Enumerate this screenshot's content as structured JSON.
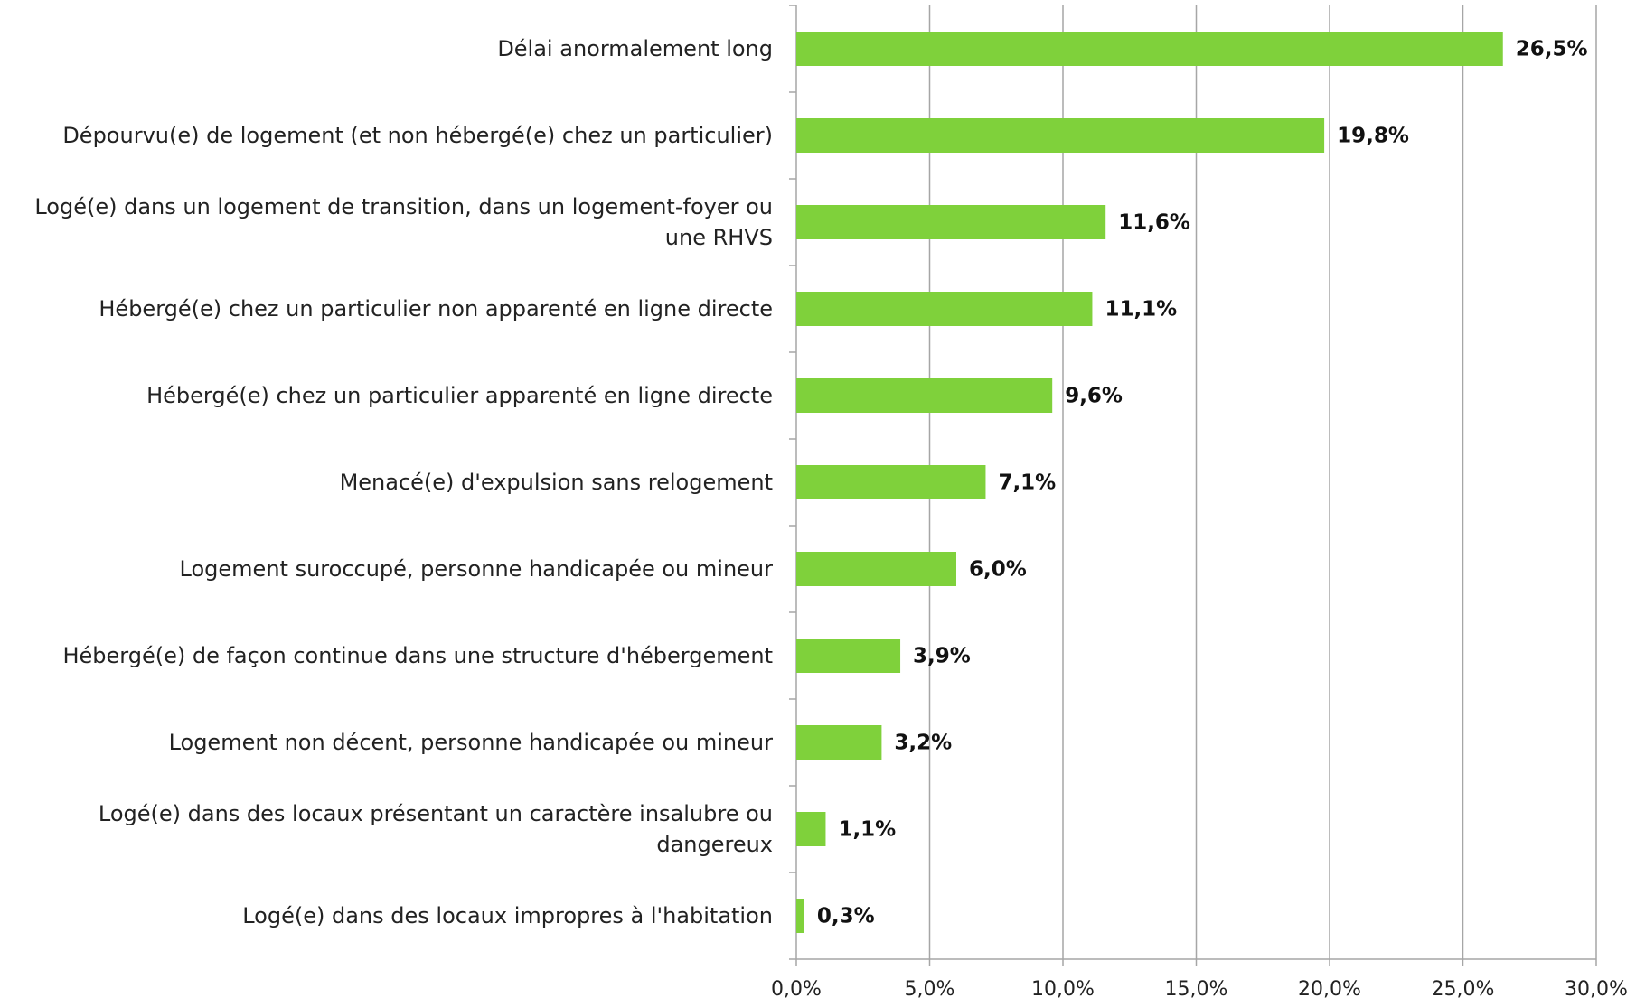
{
  "chart_data": {
    "type": "bar",
    "orientation": "horizontal",
    "categories": [
      "Délai anormalement long",
      "Dépourvu(e) de logement (et non hébergé(e) chez un particulier)",
      "Logé(e) dans un logement de transition, dans un logement-foyer ou une RHVS",
      "Hébergé(e) chez un particulier non apparenté en ligne directe",
      "Hébergé(e) chez un particulier apparenté en ligne directe",
      "Menacé(e) d'expulsion sans relogement",
      "Logement suroccupé, personne handicapée ou mineur",
      "Hébergé(e) de façon continue dans une structure d'hébergement",
      "Logement non décent, personne handicapée ou mineur",
      "Logé(e) dans des locaux présentant un caractère insalubre ou dangereux",
      "Logé(e) dans des locaux impropres à l'habitation"
    ],
    "values": [
      26.5,
      19.8,
      11.6,
      11.1,
      9.6,
      7.1,
      6.0,
      3.9,
      3.2,
      1.1,
      0.3
    ],
    "value_labels": [
      "26,5%",
      "19,8%",
      "11,6%",
      "11,1%",
      "9,6%",
      "7,1%",
      "6,0%",
      "3,9%",
      "3,2%",
      "1,1%",
      "0,3%"
    ],
    "color": "#7fd13b",
    "xlim": [
      0,
      30
    ],
    "xticks": [
      {
        "value": 0,
        "label": "0,0%"
      },
      {
        "value": 5,
        "label": "5,0%"
      },
      {
        "value": 10,
        "label": "10,0%"
      },
      {
        "value": 15,
        "label": "15,0%"
      },
      {
        "value": 20,
        "label": "20,0%"
      },
      {
        "value": 25,
        "label": "25,0%"
      },
      {
        "value": 30,
        "label": "30,0%"
      }
    ],
    "grid": true
  }
}
